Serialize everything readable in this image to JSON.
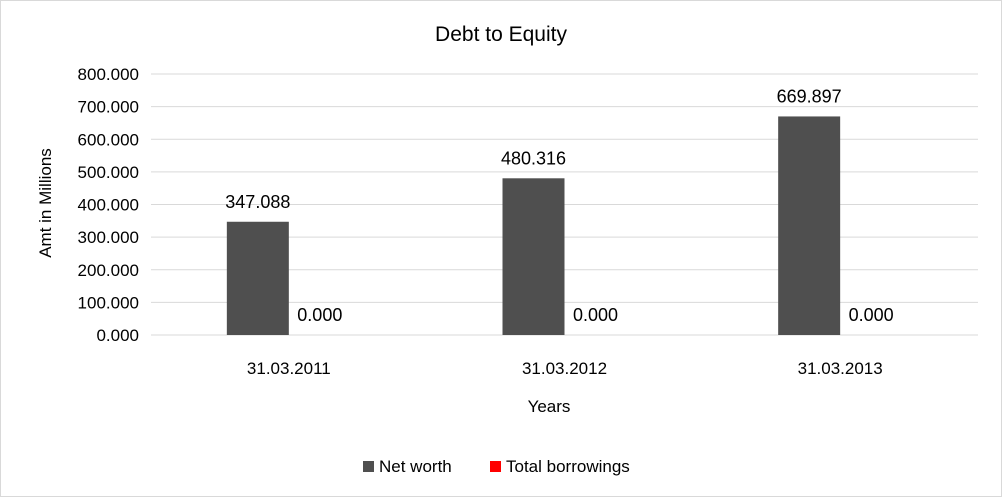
{
  "chart_data": {
    "type": "bar",
    "title": "Debt to Equity",
    "xlabel": "Years",
    "ylabel": "Amt in Millions",
    "categories": [
      "31.03.2011",
      "31.03.2012",
      "31.03.2013"
    ],
    "series": [
      {
        "name": "Net worth",
        "values": [
          347.088,
          480.316,
          669.897
        ],
        "color": "#4f4f4f"
      },
      {
        "name": "Total borrowings",
        "values": [
          0.0,
          0.0,
          0.0
        ],
        "color": "#ff0000"
      }
    ],
    "ylim": [
      0,
      800
    ],
    "yticks": [
      "0.000",
      "100.000",
      "200.000",
      "300.000",
      "400.000",
      "500.000",
      "600.000",
      "700.000",
      "800.000"
    ],
    "data_labels": [
      [
        "347.088",
        "480.316",
        "669.897"
      ],
      [
        "0.000",
        "0.000",
        "0.000"
      ]
    ],
    "grid": true,
    "legend_position": "bottom"
  }
}
